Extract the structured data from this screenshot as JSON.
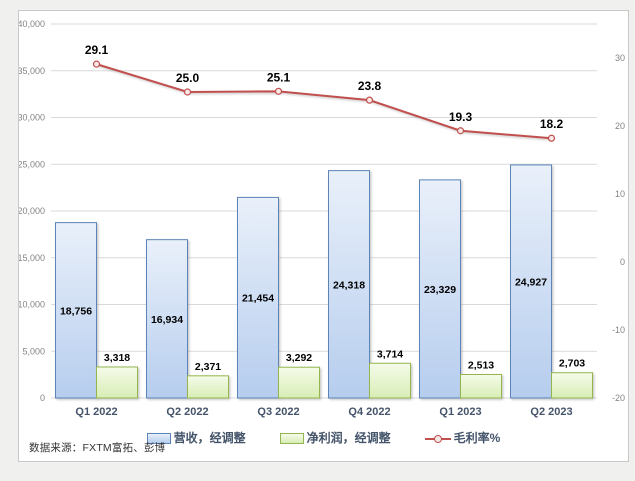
{
  "source_note": "数据来源：FXTM富拓、彭博",
  "colors": {
    "page_bg": "#f0f1ee",
    "panel_bg": "#ffffff",
    "panel_border": "#c9c9c9",
    "grid": "#d9d9d9",
    "tick_label": "#848484",
    "category_label": "#44546a",
    "value_label": "#000000",
    "revenue_fill_top": "#e9f0fa",
    "revenue_fill_bottom": "#b6cdee",
    "revenue_border": "#5b84b8",
    "profit_fill_top": "#f5fbea",
    "profit_fill_bottom": "#d8edb5",
    "profit_border": "#94b64e",
    "margin_line": "#c0504d",
    "marker_fill": "#f8e9e8"
  },
  "chart_data": {
    "type": "bar+line combo",
    "title": "",
    "categories": [
      "Q1 2022",
      "Q2 2022",
      "Q3 2022",
      "Q4 2022",
      "Q1 2023",
      "Q2 2023"
    ],
    "series": [
      {
        "name": "营收，经调整",
        "chart": "bar",
        "axis": "left",
        "values": [
          18756,
          16934,
          21454,
          24318,
          23329,
          24927
        ],
        "label_position": "inside-center"
      },
      {
        "name": "净利润，经调整",
        "chart": "bar",
        "axis": "left",
        "values": [
          3318,
          2371,
          3292,
          3714,
          2513,
          2703
        ],
        "label_position": "outside-end"
      },
      {
        "name": "毛利率%",
        "chart": "line",
        "axis": "right",
        "values": [
          29.1,
          25.0,
          25.1,
          23.8,
          19.3,
          18.2
        ],
        "label_position": "above"
      }
    ],
    "left_axis": {
      "min": 0,
      "max": 40000,
      "step": 5000,
      "tick_format": "thousands-comma"
    },
    "right_axis": {
      "min": -20,
      "max": 35,
      "ticks": [
        -20,
        -10,
        0,
        10,
        20,
        30
      ]
    },
    "gridlines": "horizontal-left-axis",
    "legend_position": "bottom"
  }
}
